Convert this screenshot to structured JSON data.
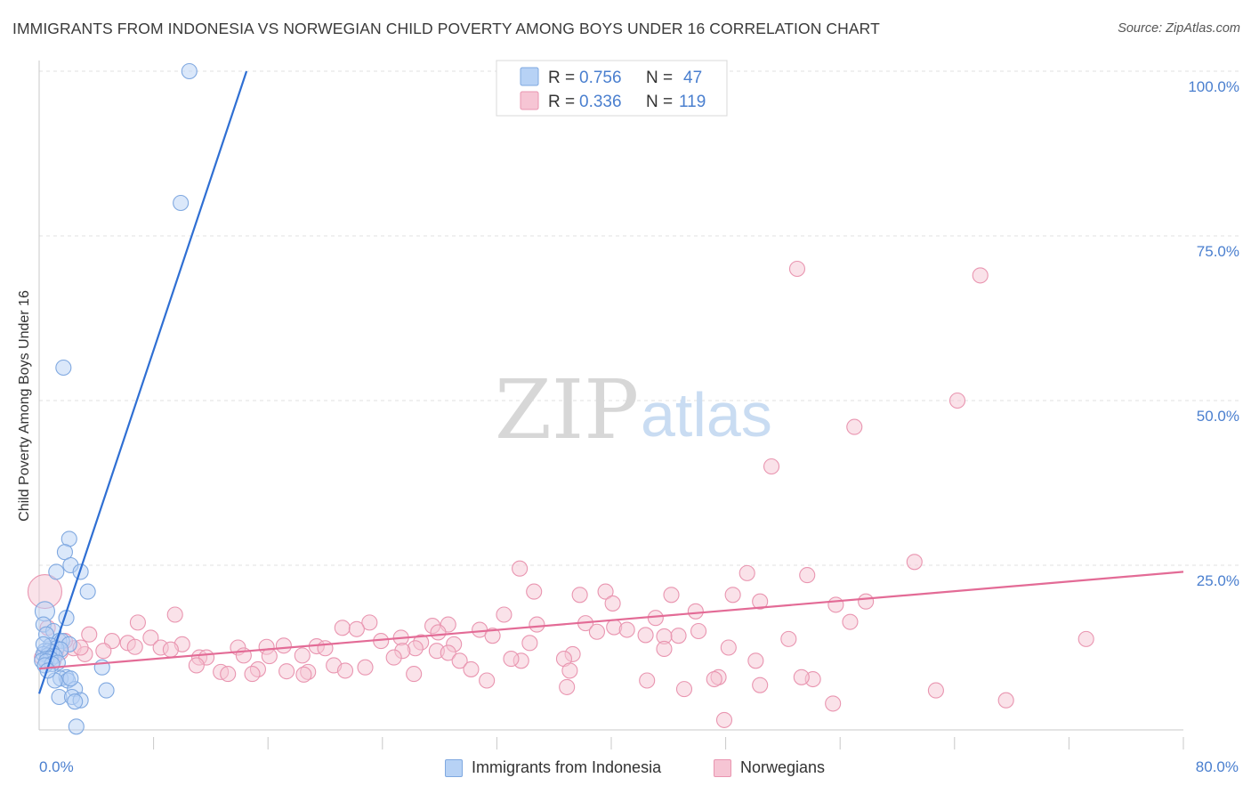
{
  "title": "IMMIGRANTS FROM INDONESIA VS NORWEGIAN CHILD POVERTY AMONG BOYS UNDER 16 CORRELATION CHART",
  "source": "Source: ZipAtlas.com",
  "watermark": {
    "zip": "ZIP",
    "atlas": "atlas"
  },
  "colors": {
    "blue_fill": "#b7d2f5",
    "blue_stroke": "#7fa8e0",
    "blue_line": "#2f6fd3",
    "pink_fill": "#f6c5d4",
    "pink_stroke": "#e995b0",
    "pink_line": "#e36b96",
    "axis_text": "#4a7fcf",
    "grid": "#e2e2e2"
  },
  "legend": {
    "blue": {
      "r_label": "R =",
      "r_value": "0.756",
      "n_label": "N =",
      "n_value": "47"
    },
    "pink": {
      "r_label": "R =",
      "r_value": "0.336",
      "n_label": "N =",
      "n_value": "119"
    }
  },
  "chart_data": {
    "type": "scatter",
    "title": "IMMIGRANTS FROM INDONESIA VS NORWEGIAN CHILD POVERTY AMONG BOYS UNDER 16 CORRELATION CHART",
    "xlabel_left": "0.0%",
    "xlabel_right": "80.0%",
    "ylabel": "Child Poverty Among Boys Under 16",
    "xlim": [
      0,
      80
    ],
    "ylim": [
      0,
      100
    ],
    "y_ticks": [
      {
        "value": 25,
        "label": "25.0%"
      },
      {
        "value": 50,
        "label": "50.0%"
      },
      {
        "value": 75,
        "label": "75.0%"
      },
      {
        "value": 100,
        "label": "100.0%"
      }
    ],
    "x_tick_values": [
      8,
      16,
      24,
      32,
      40,
      48,
      56,
      64,
      72,
      80
    ],
    "series": [
      {
        "name": "Immigrants from Indonesia",
        "color": "blue",
        "trend": {
          "x0": 0,
          "y0": 5.5,
          "x1": 14.5,
          "y1": 100
        },
        "points": [
          [
            10.5,
            100
          ],
          [
            9.9,
            80
          ],
          [
            1.7,
            55
          ],
          [
            2.1,
            29
          ],
          [
            1.8,
            27
          ],
          [
            2.2,
            25
          ],
          [
            1.2,
            24
          ],
          [
            2.9,
            24
          ],
          [
            3.4,
            21
          ],
          [
            0.4,
            18
          ],
          [
            1.9,
            17
          ],
          [
            0.3,
            16
          ],
          [
            1.0,
            15
          ],
          [
            0.5,
            14.5
          ],
          [
            1.4,
            13.5
          ],
          [
            1.6,
            13.5
          ],
          [
            2.1,
            13.0
          ],
          [
            0.8,
            12.8
          ],
          [
            1.2,
            12.4
          ],
          [
            1.5,
            12.2
          ],
          [
            0.4,
            12.0
          ],
          [
            0.7,
            12.0
          ],
          [
            0.9,
            11.8
          ],
          [
            0.3,
            11.5
          ],
          [
            0.6,
            11.3
          ],
          [
            1.1,
            11.2
          ],
          [
            0.8,
            10.8
          ],
          [
            0.2,
            10.5
          ],
          [
            0.5,
            10.4
          ],
          [
            1.3,
            10.2
          ],
          [
            0.9,
            10.0
          ],
          [
            0.4,
            9.8
          ],
          [
            4.4,
            9.5
          ],
          [
            1.9,
            8.0
          ],
          [
            1.5,
            7.8
          ],
          [
            2.0,
            7.5
          ],
          [
            2.5,
            6.2
          ],
          [
            4.7,
            6.0
          ],
          [
            1.4,
            5.0
          ],
          [
            2.3,
            5.0
          ],
          [
            2.9,
            4.5
          ],
          [
            2.5,
            4.3
          ],
          [
            2.6,
            0.5
          ],
          [
            1.1,
            7.5
          ],
          [
            2.2,
            7.8
          ],
          [
            0.6,
            9.0
          ],
          [
            0.3,
            13.0
          ]
        ]
      },
      {
        "name": "Norwegians",
        "color": "pink",
        "trend": {
          "x0": 0,
          "y0": 9.3,
          "x1": 80,
          "y1": 24
        },
        "points": [
          [
            0.4,
            21
          ],
          [
            53,
            70
          ],
          [
            65.8,
            69
          ],
          [
            64.2,
            50
          ],
          [
            57,
            46
          ],
          [
            51.2,
            40
          ],
          [
            61.2,
            25.5
          ],
          [
            33.6,
            24.5
          ],
          [
            49.5,
            23.8
          ],
          [
            53.7,
            23.5
          ],
          [
            39.6,
            21.0
          ],
          [
            34.6,
            21.0
          ],
          [
            37.8,
            20.5
          ],
          [
            44.2,
            20.5
          ],
          [
            48.5,
            20.5
          ],
          [
            50.4,
            19.5
          ],
          [
            57.8,
            19.5
          ],
          [
            40.1,
            19.2
          ],
          [
            55.7,
            19.0
          ],
          [
            9.5,
            17.5
          ],
          [
            45.9,
            18.0
          ],
          [
            32.5,
            17.5
          ],
          [
            43.1,
            17.0
          ],
          [
            34.8,
            16.0
          ],
          [
            28.6,
            16.0
          ],
          [
            23.1,
            16.3
          ],
          [
            6.9,
            16.3
          ],
          [
            56.7,
            16.4
          ],
          [
            38.2,
            16.2
          ],
          [
            27.5,
            15.8
          ],
          [
            40.2,
            15.6
          ],
          [
            41.1,
            15.2
          ],
          [
            46.1,
            15.0
          ],
          [
            21.2,
            15.5
          ],
          [
            30.8,
            15.2
          ],
          [
            22.2,
            15.3
          ],
          [
            27.9,
            14.8
          ],
          [
            39.0,
            14.9
          ],
          [
            42.4,
            14.4
          ],
          [
            44.7,
            14.3
          ],
          [
            43.7,
            14.2
          ],
          [
            31.7,
            14.3
          ],
          [
            25.3,
            14.0
          ],
          [
            3.5,
            14.5
          ],
          [
            7.8,
            14.0
          ],
          [
            52.4,
            13.8
          ],
          [
            73.2,
            13.8
          ],
          [
            5.1,
            13.5
          ],
          [
            6.2,
            13.2
          ],
          [
            10.0,
            13.0
          ],
          [
            34.3,
            13.2
          ],
          [
            26.7,
            13.3
          ],
          [
            29.0,
            13.0
          ],
          [
            17.1,
            12.8
          ],
          [
            8.5,
            12.5
          ],
          [
            6.7,
            12.6
          ],
          [
            13.9,
            12.5
          ],
          [
            15.9,
            12.6
          ],
          [
            19.4,
            12.7
          ],
          [
            20.0,
            12.4
          ],
          [
            26.3,
            12.4
          ],
          [
            43.7,
            12.3
          ],
          [
            48.2,
            12.5
          ],
          [
            27.8,
            12.0
          ],
          [
            2.4,
            12.4
          ],
          [
            4.5,
            12.0
          ],
          [
            9.2,
            12.2
          ],
          [
            25.4,
            12.0
          ],
          [
            28.6,
            11.7
          ],
          [
            37.3,
            11.5
          ],
          [
            18.4,
            11.3
          ],
          [
            14.3,
            11.3
          ],
          [
            11.2,
            11.0
          ],
          [
            24.8,
            11.0
          ],
          [
            11.7,
            11.0
          ],
          [
            36.7,
            10.8
          ],
          [
            16.1,
            11.2
          ],
          [
            29.4,
            10.5
          ],
          [
            33.7,
            10.5
          ],
          [
            50.1,
            10.5
          ],
          [
            3.2,
            11.5
          ],
          [
            1.2,
            12.0
          ],
          [
            11.0,
            9.8
          ],
          [
            20.6,
            9.8
          ],
          [
            22.8,
            9.5
          ],
          [
            21.4,
            9.0
          ],
          [
            30.2,
            9.2
          ],
          [
            15.3,
            9.2
          ],
          [
            17.3,
            8.9
          ],
          [
            37.1,
            9.0
          ],
          [
            12.7,
            8.8
          ],
          [
            13.2,
            8.5
          ],
          [
            14.9,
            8.5
          ],
          [
            18.8,
            8.8
          ],
          [
            18.5,
            8.4
          ],
          [
            26.2,
            8.5
          ],
          [
            47.5,
            8.0
          ],
          [
            47.2,
            7.7
          ],
          [
            54.1,
            7.7
          ],
          [
            53.3,
            8.0
          ],
          [
            42.5,
            7.5
          ],
          [
            50.4,
            6.8
          ],
          [
            31.3,
            7.5
          ],
          [
            36.9,
            6.5
          ],
          [
            45.1,
            6.2
          ],
          [
            62.7,
            6.0
          ],
          [
            67.6,
            4.5
          ],
          [
            55.5,
            4.0
          ],
          [
            47.9,
            1.5
          ],
          [
            0.2,
            11.0
          ],
          [
            1.8,
            13.5
          ],
          [
            0.6,
            15.5
          ],
          [
            2.9,
            12.5
          ],
          [
            1.5,
            11.8
          ],
          [
            1.0,
            10.5
          ],
          [
            23.9,
            13.5
          ],
          [
            33.0,
            10.8
          ]
        ]
      }
    ],
    "legend_entries": [
      "Immigrants from Indonesia",
      "Norwegians"
    ]
  }
}
